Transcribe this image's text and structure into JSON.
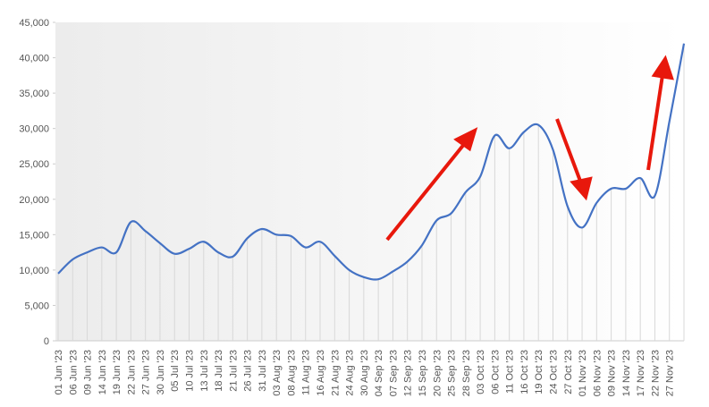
{
  "chart_data": {
    "type": "line",
    "categories": [
      "01 Jun '23",
      "06 Jun '23",
      "09 Jun '23",
      "14 Jun '23",
      "19 Jun '23",
      "22 Jun '23",
      "27 Jun '23",
      "30 Jun '23",
      "05 Jul '23",
      "10 Jul '23",
      "13 Jul '23",
      "18 Jul '23",
      "21 Jul '23",
      "26 Jul '23",
      "31 Jul '23",
      "03 Aug '23",
      "08 Aug '23",
      "11 Aug '23",
      "16 Aug '23",
      "21 Aug '23",
      "24 Aug '23",
      "30 Aug '23",
      "04 Sep '23",
      "07 Sep '23",
      "12 Sep '23",
      "15 Sep '23",
      "20 Sep '23",
      "25 Sep '23",
      "28 Sep '23",
      "03 Oct '23",
      "06 Oct '23",
      "11 Oct '23",
      "16 Oct '23",
      "19 Oct '23",
      "24 Oct '23",
      "27 Oct '23",
      "01 Nov '23",
      "06 Nov '23",
      "09 Nov '23",
      "14 Nov '23",
      "17 Nov '23",
      "22 Nov '23",
      "27 Nov '23",
      null
    ],
    "values": [
      9500,
      11500,
      12500,
      13200,
      12500,
      16800,
      15500,
      13800,
      12300,
      13000,
      14000,
      12500,
      11900,
      14500,
      15800,
      15000,
      14800,
      13200,
      14000,
      12000,
      10000,
      9000,
      8700,
      9800,
      11200,
      13500,
      17000,
      18000,
      21000,
      23200,
      29000,
      27200,
      29500,
      30500,
      27000,
      19000,
      16000,
      19500,
      21500,
      21500,
      23000,
      20500,
      31000,
      42000
    ],
    "color": "#4472c4",
    "ylim": [
      0,
      45000
    ],
    "yticks": [
      0,
      {
        "value": 5000,
        "label": "5,000"
      },
      {
        "value": 10000,
        "label": "10,000"
      },
      {
        "value": 15000,
        "label": "15,000"
      },
      {
        "value": 20000,
        "label": "20,000"
      },
      {
        "value": 25000,
        "label": "25,000"
      },
      {
        "value": 30000,
        "label": "30,000"
      },
      {
        "value": 35000,
        "label": "35,000"
      },
      {
        "value": 40000,
        "label": "40,000"
      },
      {
        "value": 45000,
        "label": "45,000"
      }
    ],
    "grid": false
  }
}
